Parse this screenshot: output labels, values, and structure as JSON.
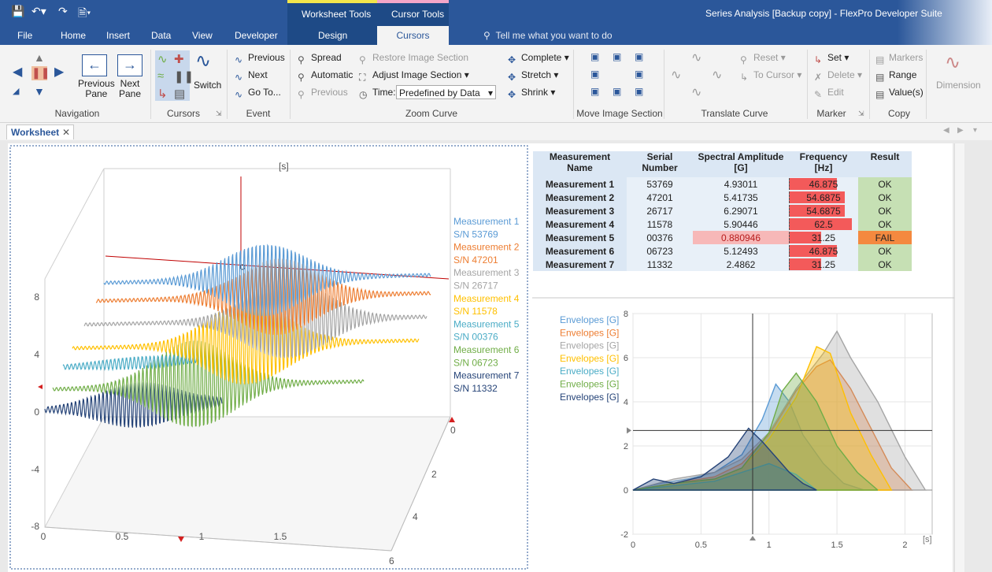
{
  "window": {
    "title": "Series Analysis [Backup copy] - FlexPro Developer Suite"
  },
  "menu": {
    "tabs": [
      "File",
      "Home",
      "Insert",
      "Data",
      "View",
      "Developer"
    ],
    "context_groups": [
      "Worksheet Tools",
      "Cursor Tools"
    ],
    "context_tabs": [
      "Design",
      "Cursors"
    ],
    "tell_me": "Tell me what you want to do"
  },
  "ribbon": {
    "navigation": {
      "label": "Navigation",
      "previous_pane": "Previous\nPane",
      "next_pane": "Next\nPane"
    },
    "cursors": {
      "label": "Cursors",
      "switch": "Switch"
    },
    "event": {
      "label": "Event",
      "previous": "Previous",
      "next": "Next",
      "goto": "Go To..."
    },
    "zoom": {
      "label": "Zoom Curve",
      "spread": "Spread",
      "automatic": "Automatic",
      "previous": "Previous",
      "restore": "Restore Image Section",
      "adjust": "Adjust Image Section",
      "time_label": "Time:",
      "time_value": "Predefined by Data",
      "complete": "Complete",
      "stretch": "Stretch",
      "shrink": "Shrink"
    },
    "move": {
      "label": "Move Image Section"
    },
    "translate": {
      "label": "Translate Curve"
    },
    "marker": {
      "label": "Marker",
      "reset": "Reset",
      "to_cursor": "To Cursor",
      "set": "Set",
      "delete": "Delete",
      "edit": "Edit"
    },
    "copy": {
      "label": "Copy",
      "markers": "Markers",
      "range": "Range",
      "values": "Value(s)"
    },
    "dimension": "Dimension"
  },
  "document_tab": "Worksheet",
  "colors": {
    "m1": "#5b9bd5",
    "m2": "#ed7d31",
    "m3": "#a5a5a5",
    "m4": "#ffc000",
    "m5": "#4bacc6",
    "m6": "#70ad47",
    "m7": "#264478"
  },
  "table": {
    "headers": [
      "Measurement Name",
      "Serial Number",
      "Spectral Amplitude\n[G]",
      "Frequency\n[Hz]",
      "Result"
    ],
    "rows": [
      {
        "name": "Measurement 1",
        "serial": "53769",
        "amp": "4.93011",
        "freq": "46.875",
        "result": "OK",
        "freq_level": 0.68
      },
      {
        "name": "Measurement 2",
        "serial": "47201",
        "amp": "5.41735",
        "freq": "54.6875",
        "result": "OK",
        "freq_level": 0.79
      },
      {
        "name": "Measurement 3",
        "serial": "26717",
        "amp": "6.29071",
        "freq": "54.6875",
        "result": "OK",
        "freq_level": 0.79
      },
      {
        "name": "Measurement 4",
        "serial": "11578",
        "amp": "5.90446",
        "freq": "62.5",
        "result": "OK",
        "freq_level": 0.9
      },
      {
        "name": "Measurement 5",
        "serial": "00376",
        "amp": "0.880946",
        "freq": "31.25",
        "result": "FAIL",
        "freq_level": 0.45
      },
      {
        "name": "Measurement 6",
        "serial": "06723",
        "amp": "5.12493",
        "freq": "46.875",
        "result": "OK",
        "freq_level": 0.68
      },
      {
        "name": "Measurement 7",
        "serial": "11332",
        "amp": "2.4862",
        "freq": "31.25",
        "result": "OK",
        "freq_level": 0.45
      }
    ]
  },
  "chart_data": [
    {
      "type": "line",
      "title": "",
      "axis_unit_label": "[s]",
      "x_ticks": [
        "0",
        "0.5",
        "1",
        "1.5"
      ],
      "y_ticks": [
        "8",
        "4",
        "0",
        "-4",
        "-8"
      ],
      "z_ticks": [
        "0",
        "2",
        "4",
        "6"
      ],
      "legend": [
        "Measurement 1",
        "S/N 53769",
        "Measurement 2",
        "S/N 47201",
        "Measurement 3",
        "S/N 26717",
        "Measurement 4",
        "S/N 11578",
        "Measurement 5",
        "S/N 00376",
        "Measurement 6",
        "S/N 06723",
        "Measurement 7",
        "S/N 11332"
      ],
      "legend_position": "right",
      "grid": false
    },
    {
      "type": "area",
      "xlabel": "[s]",
      "x_ticks": [
        "0",
        "0.5",
        "1",
        "1.5",
        "2"
      ],
      "y_ticks": [
        "8",
        "6",
        "4",
        "2",
        "0",
        "-2"
      ],
      "xlim": [
        0,
        2.2
      ],
      "ylim": [
        -2,
        8
      ],
      "legend": [
        "Envelopes [G]",
        "Envelopes [G]",
        "Envelopes [G]",
        "Envelopes [G]",
        "Envelopes [G]",
        "Envelopes [G]",
        "Envelopes [G]"
      ],
      "legend_position": "top-left",
      "cursor_x": 0.88,
      "cursor_y": 2.7,
      "grid": true,
      "series": [
        {
          "x": [
            0,
            0.2,
            0.4,
            0.6,
            0.8,
            0.95,
            1.05,
            1.15,
            1.25,
            1.4,
            1.55,
            1.7
          ],
          "y": [
            0,
            0.3,
            0.5,
            0.8,
            1.6,
            3.2,
            4.8,
            4.0,
            2.5,
            1.2,
            0.3,
            0
          ]
        },
        {
          "x": [
            0,
            0.3,
            0.6,
            0.8,
            1.0,
            1.2,
            1.35,
            1.45,
            1.6,
            1.75,
            1.9,
            2.05
          ],
          "y": [
            0,
            0.3,
            0.6,
            1.2,
            2.5,
            4.5,
            5.6,
            5.9,
            4.6,
            2.8,
            1.0,
            0
          ]
        },
        {
          "x": [
            0,
            0.3,
            0.6,
            0.8,
            1.0,
            1.2,
            1.4,
            1.5,
            1.6,
            1.8,
            2.0,
            2.15
          ],
          "y": [
            0,
            0.5,
            0.8,
            1.4,
            2.6,
            4.6,
            6.2,
            7.2,
            6.0,
            4.0,
            1.5,
            0
          ]
        },
        {
          "x": [
            0,
            0.3,
            0.6,
            0.8,
            1.0,
            1.2,
            1.35,
            1.45,
            1.6,
            1.75,
            1.9
          ],
          "y": [
            0,
            0.3,
            0.5,
            1.0,
            2.3,
            4.2,
            6.5,
            6.2,
            3.5,
            1.6,
            0
          ]
        },
        {
          "x": [
            0,
            0.3,
            0.6,
            0.8,
            1.0,
            1.2,
            1.35
          ],
          "y": [
            0,
            0.2,
            0.4,
            0.8,
            1.2,
            0.7,
            0
          ]
        },
        {
          "x": [
            0,
            0.3,
            0.6,
            0.8,
            1.0,
            1.1,
            1.2,
            1.35,
            1.5,
            1.65,
            1.8
          ],
          "y": [
            0,
            0.3,
            0.5,
            1.0,
            2.6,
            4.5,
            5.3,
            4.0,
            2.0,
            0.8,
            0
          ]
        },
        {
          "x": [
            0,
            0.15,
            0.3,
            0.5,
            0.7,
            0.85,
            0.95,
            1.05,
            1.15,
            1.25,
            1.35
          ],
          "y": [
            0,
            0.5,
            0.3,
            0.6,
            1.5,
            2.8,
            2.2,
            1.5,
            0.8,
            0.3,
            0
          ]
        }
      ]
    }
  ]
}
